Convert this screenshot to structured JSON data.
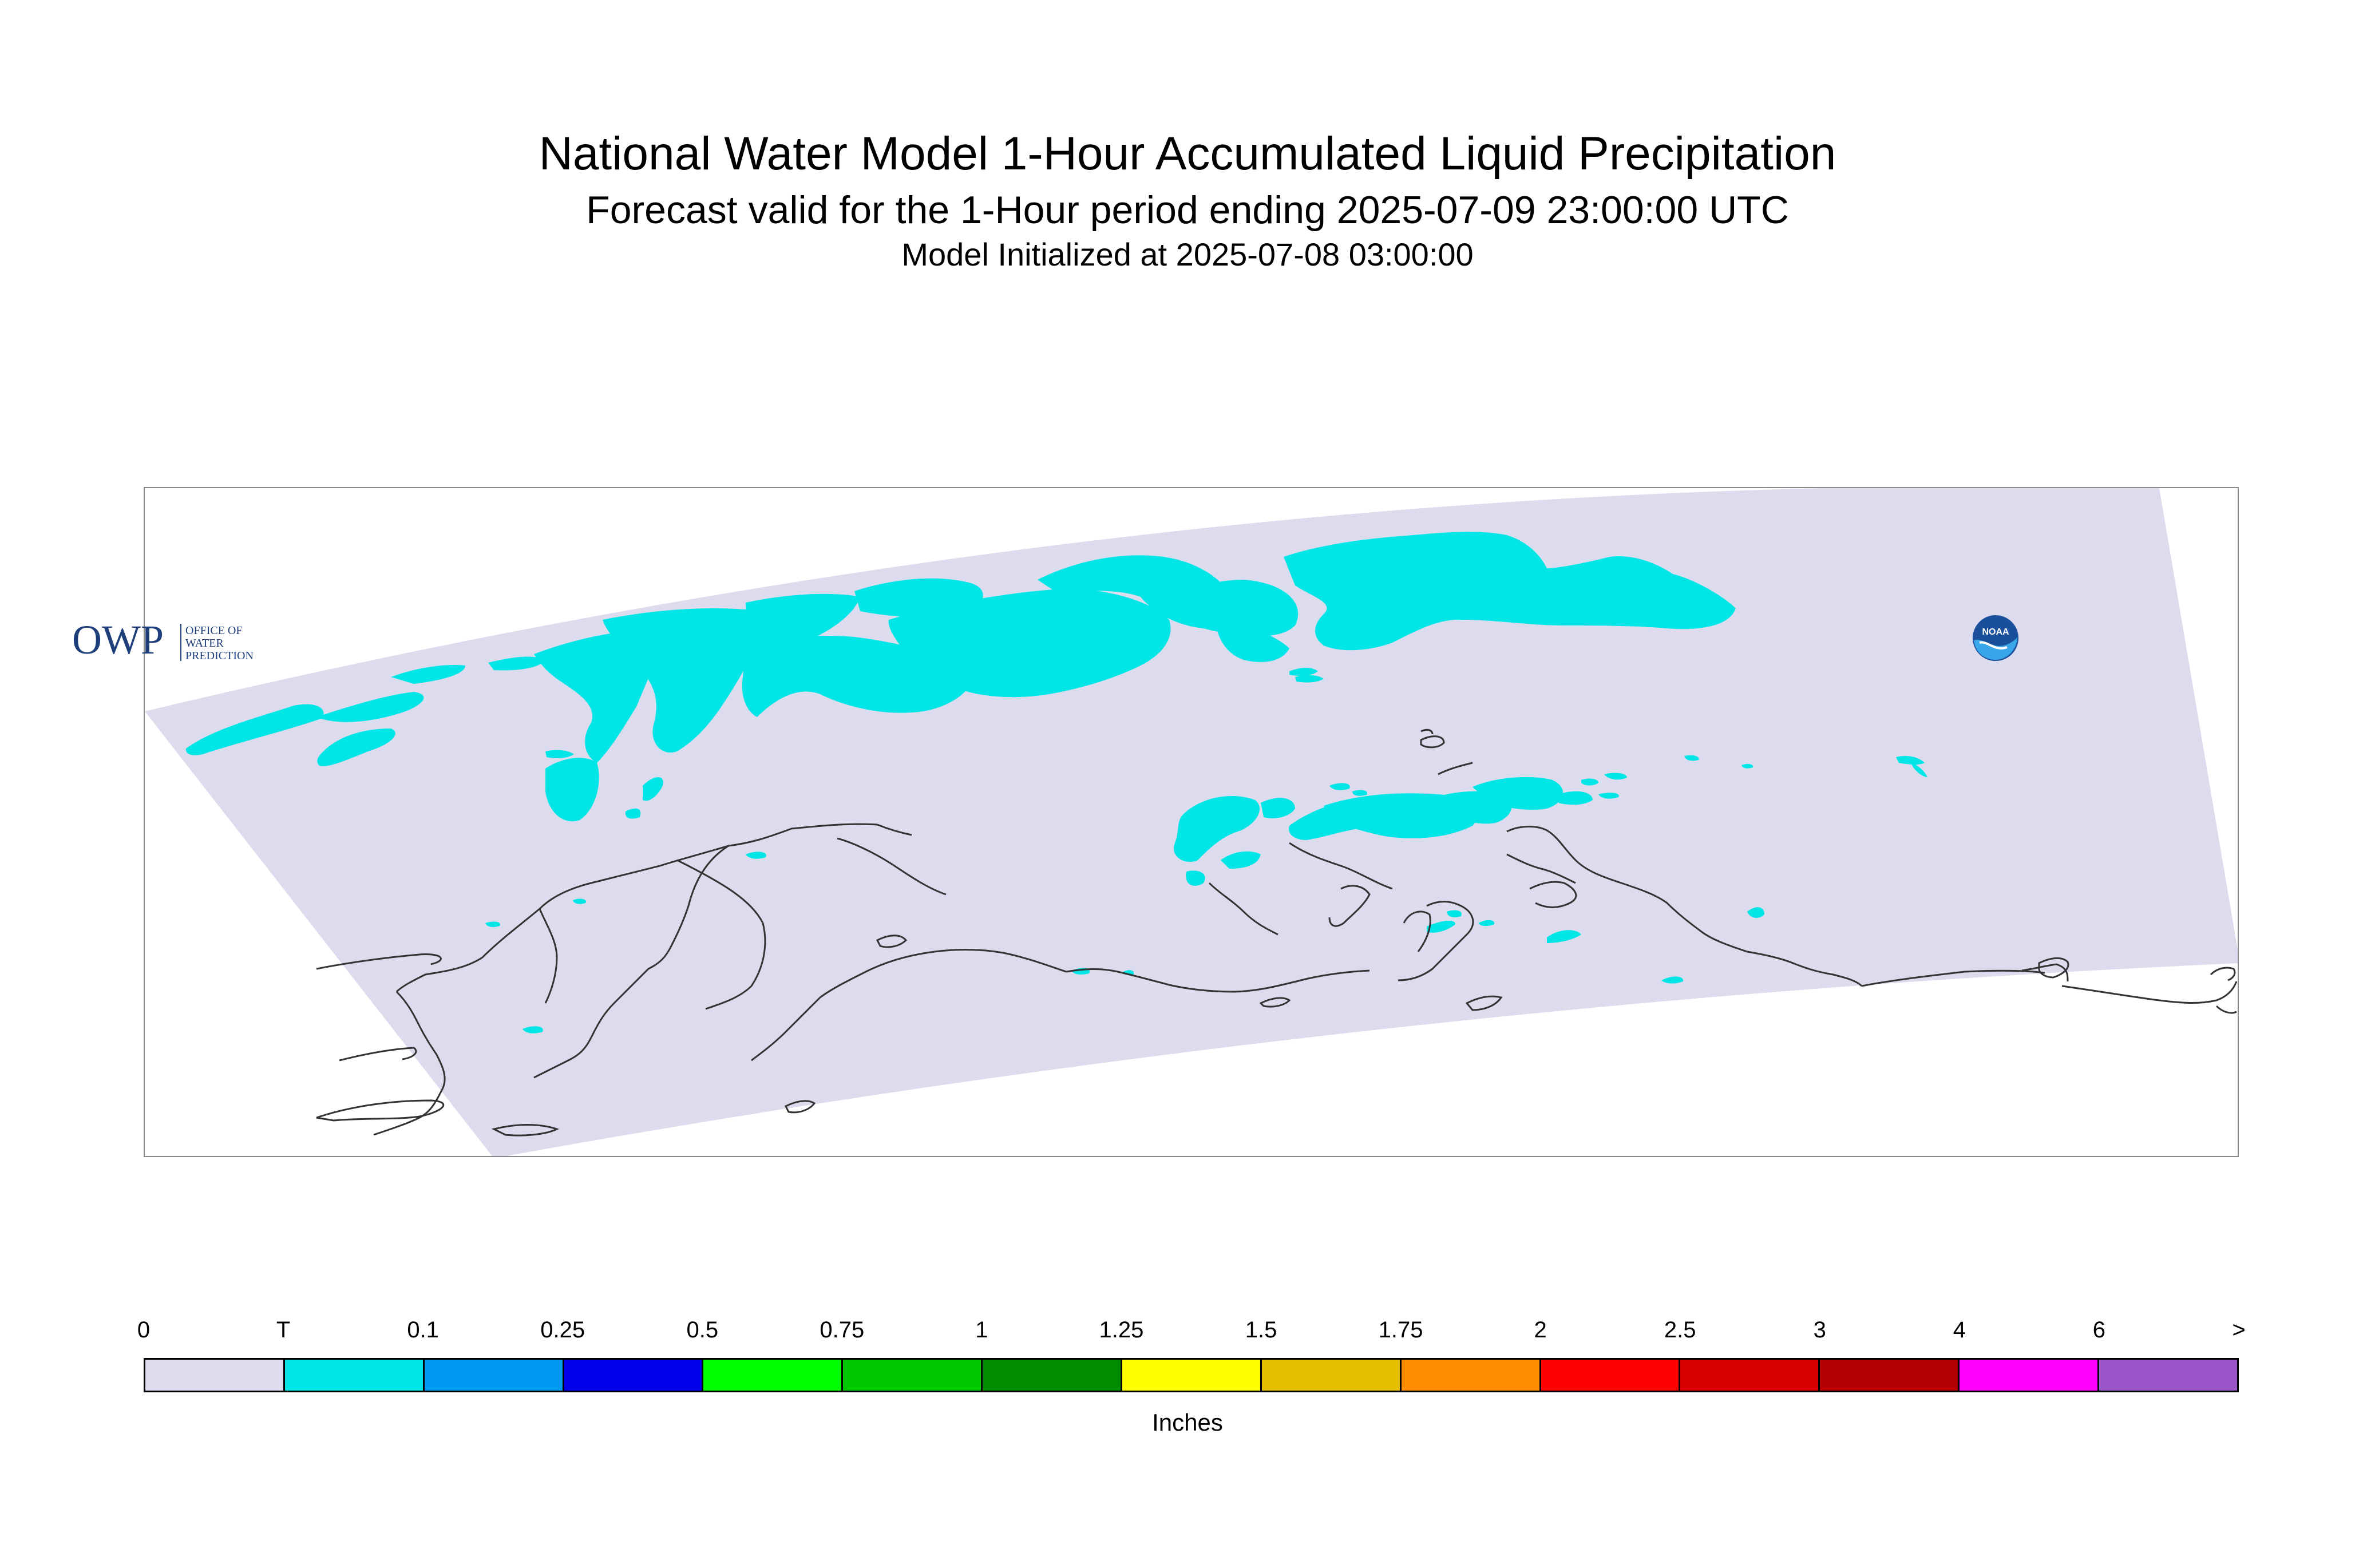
{
  "header": {
    "title": "National Water Model 1-Hour Accumulated Liquid Precipitation",
    "subtitle": "Forecast valid for the 1-Hour period ending 2025-07-09 23:00:00 UTC",
    "init_line": "Model Initialized at 2025-07-08 03:00:00"
  },
  "map": {
    "domain_fill": "#dcdcee",
    "precip_fill": "#00e6e6",
    "coast_color": "#333333"
  },
  "logos": {
    "owp": {
      "mark": "OWP",
      "text_line1": "OFFICE OF",
      "text_line2": "WATER",
      "text_line3": "PREDICTION",
      "color": "#1f3f7a"
    },
    "noaa": {
      "text": "NOAA",
      "color": "#1a4f9c"
    }
  },
  "legend": {
    "tick_labels": [
      "0",
      "T",
      "0.1",
      "0.25",
      "0.5",
      "0.75",
      "1",
      "1.25",
      "1.5",
      "1.75",
      "2",
      "2.5",
      "3",
      "4",
      "6",
      ">"
    ],
    "colors": [
      "#dcdcee",
      "#00e6e6",
      "#0099f2",
      "#0000ee",
      "#00ff00",
      "#00c800",
      "#008c00",
      "#ffff00",
      "#e6bf00",
      "#ff8c00",
      "#ff0000",
      "#d70000",
      "#b40000",
      "#ff00ff",
      "#9955c9"
    ],
    "units": "Inches"
  }
}
